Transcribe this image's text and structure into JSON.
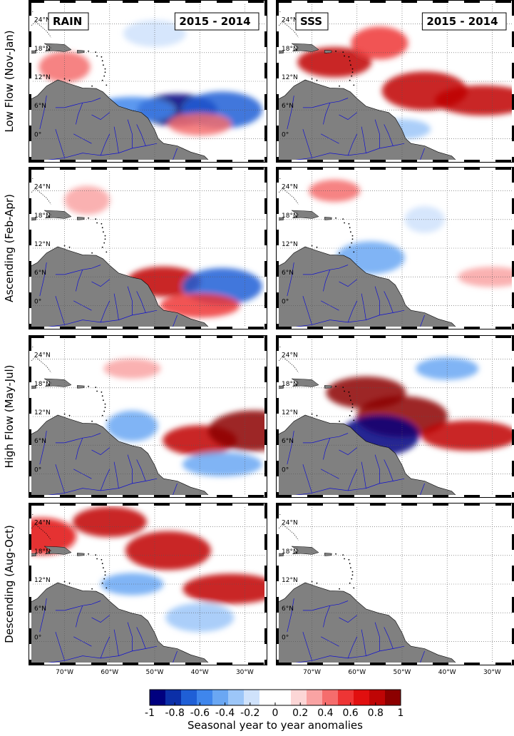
{
  "chart_data": {
    "type": "heatmap",
    "columns": [
      {
        "variable": "RAIN",
        "period": "2015 - 2014"
      },
      {
        "variable": "SSS",
        "period": "2015 - 2014"
      }
    ],
    "rows": [
      {
        "label": "Low Flow (Nov-Jan)"
      },
      {
        "label": "Ascending (Feb-Apr)"
      },
      {
        "label": "High Flow (May-Jul)"
      },
      {
        "label": "Descending (Aug-Oct)"
      }
    ],
    "lat_ticks": [
      "0°",
      "6°N",
      "12°N",
      "18°N",
      "24°N"
    ],
    "lat_values": [
      0,
      6,
      12,
      18,
      24
    ],
    "lon_ticks": [
      "70°W",
      "60°W",
      "50°W",
      "40°W",
      "30°W"
    ],
    "lon_values": [
      -70,
      -60,
      -50,
      -40,
      -30
    ],
    "lon_range": [
      -78,
      -25
    ],
    "lat_range": [
      -5,
      29
    ],
    "colorbar": {
      "min": -1,
      "max": 1,
      "tick_values": [
        -1,
        -0.8,
        -0.6,
        -0.4,
        -0.2,
        0,
        0.2,
        0.4,
        0.6,
        0.8,
        1
      ],
      "tick_labels": [
        "-1",
        "-0.8",
        "-0.6",
        "-0.4",
        "-0.2",
        "0",
        "0.2",
        "0.4",
        "0.6",
        "0.8",
        "1"
      ],
      "title": "Seasonal year to year anomalies",
      "colors": [
        "#00007f",
        "#0b2fa8",
        "#1f5fd6",
        "#3f86ec",
        "#6aa7f3",
        "#9cc6f8",
        "#cfe2fb",
        "#ffffff",
        "#ffffff",
        "#fcd6d6",
        "#f9a3a3",
        "#f56d6d",
        "#ee3535",
        "#e10f0f",
        "#bf0505",
        "#8c0000"
      ]
    },
    "anomaly_features": [
      {
        "panel": [
          0,
          0
        ],
        "lon": -45,
        "lat": 6,
        "value": -0.9
      },
      {
        "panel": [
          0,
          0
        ],
        "lon": -35,
        "lat": 6,
        "value": -0.7
      },
      {
        "panel": [
          0,
          0
        ],
        "lon": -55,
        "lat": 6,
        "value": -0.6
      },
      {
        "panel": [
          0,
          0
        ],
        "lon": -70,
        "lat": 15,
        "value": 0.4
      },
      {
        "panel": [
          0,
          0
        ],
        "lon": -40,
        "lat": 3,
        "value": 0.4
      },
      {
        "panel": [
          0,
          0
        ],
        "lon": -50,
        "lat": 22,
        "value": -0.2
      },
      {
        "panel": [
          0,
          1
        ],
        "lon": -65,
        "lat": 16,
        "value": 0.8
      },
      {
        "panel": [
          0,
          1
        ],
        "lon": -45,
        "lat": 10,
        "value": 0.8
      },
      {
        "panel": [
          0,
          1
        ],
        "lon": -32,
        "lat": 8,
        "value": 0.8
      },
      {
        "panel": [
          0,
          1
        ],
        "lon": -55,
        "lat": 20,
        "value": 0.5
      },
      {
        "panel": [
          0,
          1
        ],
        "lon": -50,
        "lat": 2,
        "value": -0.3
      },
      {
        "panel": [
          1,
          0
        ],
        "lon": -48,
        "lat": 5,
        "value": 0.8
      },
      {
        "panel": [
          1,
          0
        ],
        "lon": -35,
        "lat": 4,
        "value": -0.7
      },
      {
        "panel": [
          1,
          0
        ],
        "lon": -40,
        "lat": 0,
        "value": 0.5
      },
      {
        "panel": [
          1,
          0
        ],
        "lon": -65,
        "lat": 22,
        "value": 0.3
      },
      {
        "panel": [
          1,
          1
        ],
        "lon": -65,
        "lat": 24,
        "value": 0.4
      },
      {
        "panel": [
          1,
          1
        ],
        "lon": -57,
        "lat": 10,
        "value": -0.5
      },
      {
        "panel": [
          1,
          1
        ],
        "lon": -30,
        "lat": 6,
        "value": 0.3
      },
      {
        "panel": [
          1,
          1
        ],
        "lon": -45,
        "lat": 18,
        "value": -0.2
      },
      {
        "panel": [
          2,
          0
        ],
        "lon": -40,
        "lat": 7,
        "value": 0.8
      },
      {
        "panel": [
          2,
          0
        ],
        "lon": -28,
        "lat": 9,
        "value": 0.9
      },
      {
        "panel": [
          2,
          0
        ],
        "lon": -35,
        "lat": 2,
        "value": -0.5
      },
      {
        "panel": [
          2,
          0
        ],
        "lon": -55,
        "lat": 10,
        "value": -0.4
      },
      {
        "panel": [
          2,
          0
        ],
        "lon": -55,
        "lat": 22,
        "value": 0.3
      },
      {
        "panel": [
          2,
          1
        ],
        "lon": -58,
        "lat": 17,
        "value": 0.9
      },
      {
        "panel": [
          2,
          1
        ],
        "lon": -50,
        "lat": 12,
        "value": 0.9
      },
      {
        "panel": [
          2,
          1
        ],
        "lon": -35,
        "lat": 8,
        "value": 0.8
      },
      {
        "panel": [
          2,
          1
        ],
        "lon": -55,
        "lat": 8,
        "value": -0.9
      },
      {
        "panel": [
          2,
          1
        ],
        "lon": -40,
        "lat": 22,
        "value": -0.4
      },
      {
        "panel": [
          3,
          0
        ],
        "lon": -60,
        "lat": 25,
        "value": 0.8
      },
      {
        "panel": [
          3,
          0
        ],
        "lon": -47,
        "lat": 19,
        "value": 0.8
      },
      {
        "panel": [
          3,
          0
        ],
        "lon": -33,
        "lat": 11,
        "value": 0.8
      },
      {
        "panel": [
          3,
          0
        ],
        "lon": -75,
        "lat": 22,
        "value": 0.7
      },
      {
        "panel": [
          3,
          0
        ],
        "lon": -55,
        "lat": 12,
        "value": -0.4
      },
      {
        "panel": [
          3,
          0
        ],
        "lon": -40,
        "lat": 5,
        "value": -0.3
      }
    ]
  }
}
